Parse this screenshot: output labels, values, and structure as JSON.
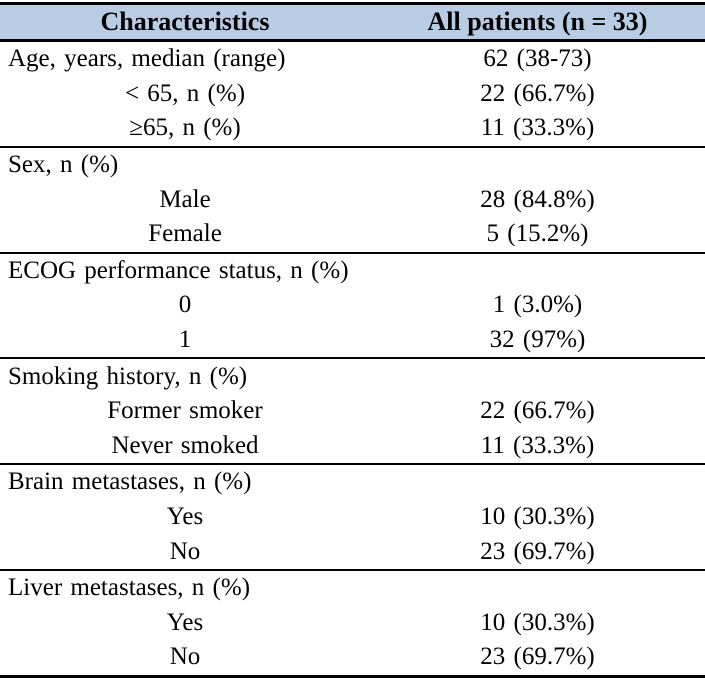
{
  "table": {
    "title": "Patient baseline characteristics table",
    "colors": {
      "header_bg": "#b8cce4",
      "border": "#000000",
      "text": "#000000"
    },
    "header": {
      "col1": "Characteristics",
      "col2": "All patients (n = 33)"
    },
    "sections": [
      {
        "rows": [
          {
            "label": "Age, years, median (range)",
            "value": "62 (38-73)"
          },
          {
            "label": "< 65, n (%)",
            "value": "22 (66.7%)"
          },
          {
            "label": "≥65, n (%)",
            "value": "11 (33.3%)"
          }
        ]
      },
      {
        "rows": [
          {
            "label": "Sex, n (%)",
            "value": ""
          },
          {
            "label": "Male",
            "value": "28 (84.8%)"
          },
          {
            "label": "Female",
            "value": "5 (15.2%)"
          }
        ]
      },
      {
        "rows": [
          {
            "label": "ECOG performance status, n (%)",
            "value": ""
          },
          {
            "label": "0",
            "value": "1 (3.0%)"
          },
          {
            "label": "1",
            "value": "32 (97%)"
          }
        ]
      },
      {
        "rows": [
          {
            "label": "Smoking history, n (%)",
            "value": ""
          },
          {
            "label": "Former smoker",
            "value": "22 (66.7%)"
          },
          {
            "label": "Never smoked",
            "value": "11 (33.3%)"
          }
        ]
      },
      {
        "rows": [
          {
            "label": "Brain metastases, n (%)",
            "value": ""
          },
          {
            "label": "Yes",
            "value": "10 (30.3%)"
          },
          {
            "label": "No",
            "value": "23 (69.7%)"
          }
        ]
      },
      {
        "rows": [
          {
            "label": "Liver metastases, n (%)",
            "value": ""
          },
          {
            "label": "Yes",
            "value": "10 (30.3%)"
          },
          {
            "label": "No",
            "value": "23 (69.7%)"
          }
        ]
      }
    ]
  }
}
